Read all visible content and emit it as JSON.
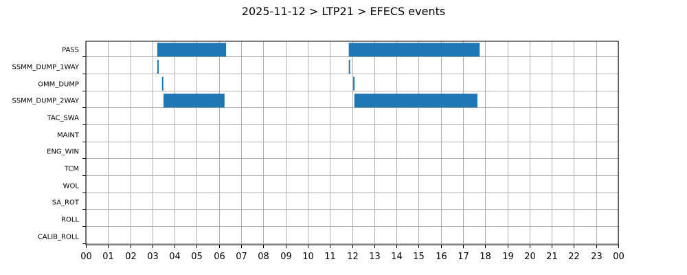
{
  "chart_data": {
    "type": "bar",
    "orientation": "horizontal",
    "title": "2025-11-12 > LTP21 > EFECS events",
    "xlabel": "",
    "ylabel": "",
    "xlim": [
      0,
      24
    ],
    "x_tick_labels": [
      "00",
      "01",
      "02",
      "03",
      "04",
      "05",
      "06",
      "07",
      "08",
      "09",
      "10",
      "11",
      "12",
      "13",
      "14",
      "15",
      "16",
      "17",
      "18",
      "19",
      "20",
      "21",
      "22",
      "23",
      "00"
    ],
    "categories": [
      "PASS",
      "SSMM_DUMP_1WAY",
      "OMM_DUMP",
      "SSMM_DUMP_2WAY",
      "TAC_SWA",
      "MAINT",
      "ENG_WIN",
      "TCM",
      "WOL",
      "SA_ROT",
      "ROLL",
      "CALIB_ROLL"
    ],
    "grid": true,
    "bar_color": "#1f77b4",
    "events": [
      {
        "category": "PASS",
        "start": 3.22,
        "end": 6.32
      },
      {
        "category": "PASS",
        "start": 11.85,
        "end": 17.75
      },
      {
        "category": "SSMM_DUMP_1WAY",
        "start": 3.22,
        "end": 3.28
      },
      {
        "category": "SSMM_DUMP_1WAY",
        "start": 11.85,
        "end": 11.91
      },
      {
        "category": "OMM_DUMP",
        "start": 3.43,
        "end": 3.49
      },
      {
        "category": "OMM_DUMP",
        "start": 12.05,
        "end": 12.11
      },
      {
        "category": "SSMM_DUMP_2WAY",
        "start": 3.5,
        "end": 6.25
      },
      {
        "category": "SSMM_DUMP_2WAY",
        "start": 12.1,
        "end": 17.65
      }
    ]
  }
}
